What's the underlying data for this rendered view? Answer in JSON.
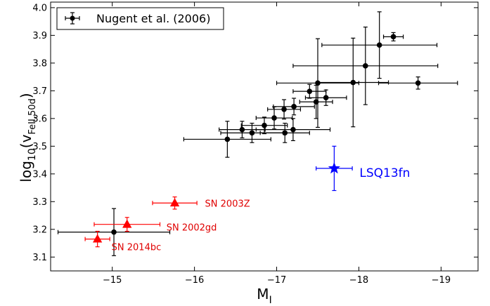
{
  "chart_data": {
    "type": "scatter",
    "title": "",
    "xlabel_main": "M",
    "xlabel_sub": "I",
    "ylabel_main": "log",
    "ylabel_sub1": "10",
    "ylabel_open": "(v",
    "ylabel_sub2": "FeII,50d",
    "ylabel_close": ")",
    "xlim": [
      -14.25,
      -19.45
    ],
    "ylim": [
      3.05,
      4.02
    ],
    "x_inverted": true,
    "x_ticks": [
      -15,
      -16,
      -17,
      -18,
      -19
    ],
    "x_tick_labels": [
      "−15",
      "−16",
      "−17",
      "−18",
      "−19"
    ],
    "y_ticks": [
      3.1,
      3.2,
      3.3,
      3.4,
      3.5,
      3.6,
      3.7,
      3.8,
      3.9,
      4.0
    ],
    "y_tick_labels": [
      "3.1",
      "3.2",
      "3.3",
      "3.4",
      "3.5",
      "3.6",
      "3.7",
      "3.8",
      "3.9",
      "4.0"
    ],
    "legend": {
      "position": "top-left",
      "entries": [
        "Nugent et al. (2006)"
      ]
    },
    "series": [
      {
        "name": "Nugent et al. (2006)",
        "marker": "circle",
        "color": "#000000",
        "points": [
          {
            "x": -15.02,
            "y": 3.19,
            "xerr": 0.68,
            "yerr": 0.085
          },
          {
            "x": -16.4,
            "y": 3.525,
            "xerr": 0.53,
            "yerr": 0.065
          },
          {
            "x": -16.58,
            "y": 3.56,
            "xerr": 0.28,
            "yerr": 0.03
          },
          {
            "x": -16.7,
            "y": 3.548,
            "xerr": 0.38,
            "yerr": 0.035
          },
          {
            "x": -16.85,
            "y": 3.575,
            "xerr": 0.28,
            "yerr": 0.03
          },
          {
            "x": -16.97,
            "y": 3.602,
            "xerr": 0.22,
            "yerr": 0.04
          },
          {
            "x": -17.09,
            "y": 3.633,
            "xerr": 0.2,
            "yerr": 0.035
          },
          {
            "x": -17.1,
            "y": 3.548,
            "xerr": 0.3,
            "yerr": 0.035
          },
          {
            "x": -17.2,
            "y": 3.56,
            "xerr": 0.45,
            "yerr": 0.04
          },
          {
            "x": -17.21,
            "y": 3.643,
            "xerr": 0.25,
            "yerr": 0.03
          },
          {
            "x": -17.4,
            "y": 3.698,
            "xerr": 0.2,
            "yerr": 0.025
          },
          {
            "x": -17.48,
            "y": 3.66,
            "xerr": 0.2,
            "yerr": 0.06
          },
          {
            "x": -17.5,
            "y": 3.728,
            "xerr": 0.5,
            "yerr": 0.16
          },
          {
            "x": -17.6,
            "y": 3.675,
            "xerr": 0.25,
            "yerr": 0.028
          },
          {
            "x": -17.93,
            "y": 3.73,
            "xerr": 0.43,
            "yerr": 0.16
          },
          {
            "x": -18.08,
            "y": 3.79,
            "xerr": 0.88,
            "yerr": 0.14
          },
          {
            "x": -18.25,
            "y": 3.865,
            "xerr": 0.7,
            "yerr": 0.12
          },
          {
            "x": -18.42,
            "y": 3.895,
            "xerr": 0.12,
            "yerr": 0.015
          },
          {
            "x": -18.72,
            "y": 3.728,
            "xerr": 0.48,
            "yerr": 0.022
          }
        ]
      },
      {
        "name": "",
        "marker": "triangle",
        "color": "#ff0000",
        "points": [
          {
            "x": -14.82,
            "y": 3.165,
            "xerr": 0.15,
            "yerr": 0.028,
            "label": "SN 2014bc"
          },
          {
            "x": -15.18,
            "y": 3.218,
            "xerr": 0.4,
            "yerr": 0.025,
            "label": "SN 2002gd"
          },
          {
            "x": -15.76,
            "y": 3.295,
            "xerr": 0.27,
            "yerr": 0.022,
            "label": "SN 2003Z"
          }
        ]
      },
      {
        "name": "",
        "marker": "star",
        "color": "#0000ff",
        "points": [
          {
            "x": -17.7,
            "y": 3.42,
            "xerr": 0.22,
            "yerr": 0.08,
            "label": "LSQ13fn"
          }
        ]
      }
    ]
  }
}
